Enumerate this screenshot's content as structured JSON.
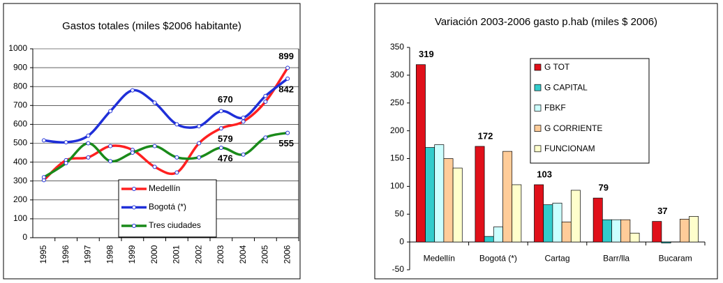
{
  "chart_data": [
    {
      "type": "line",
      "title": "Gastos totales (miles $2006 habitante)",
      "categories": [
        "1995",
        "1996",
        "1997",
        "1998",
        "1999",
        "2000",
        "2001",
        "2002",
        "2003",
        "2004",
        "2005",
        "2006"
      ],
      "ylim": [
        0,
        1000
      ],
      "yticks": [
        0,
        100,
        200,
        300,
        400,
        500,
        600,
        700,
        800,
        900,
        1000
      ],
      "grid": true,
      "series": [
        {
          "name": "Medellín",
          "color": "#ff2020",
          "values": [
            305,
            410,
            425,
            485,
            465,
            375,
            345,
            500,
            579,
            615,
            720,
            899
          ],
          "value_labels": [
            null,
            null,
            null,
            null,
            null,
            null,
            null,
            null,
            "579",
            null,
            null,
            "899"
          ]
        },
        {
          "name": "Bogotá (*)",
          "color": "#1f2fd8",
          "values": [
            515,
            505,
            540,
            670,
            780,
            715,
            600,
            590,
            670,
            635,
            750,
            842
          ],
          "value_labels": [
            null,
            null,
            null,
            null,
            null,
            null,
            null,
            null,
            "670",
            null,
            null,
            "842"
          ]
        },
        {
          "name": "Tres ciudades",
          "color": "#1a8a1a",
          "values": [
            320,
            395,
            500,
            405,
            450,
            485,
            425,
            425,
            476,
            440,
            530,
            555
          ],
          "value_labels": [
            null,
            null,
            null,
            null,
            null,
            null,
            null,
            null,
            "476",
            null,
            null,
            "555"
          ]
        }
      ]
    },
    {
      "type": "bar",
      "title": "Variación 2003-2006  gasto p.hab (miles $ 2006)",
      "categories": [
        "Medellín",
        "Bogotá (*)",
        "Cartag",
        "Barr/lla",
        "Bucaram"
      ],
      "ylim": [
        -50,
        350
      ],
      "yticks": [
        -50,
        0,
        50,
        100,
        150,
        200,
        250,
        300,
        350
      ],
      "grid": false,
      "series": [
        {
          "name": "G TOT",
          "color": "#e0101a",
          "values": [
            319,
            172,
            103,
            79,
            37
          ],
          "value_labels": [
            "319",
            "172",
            "103",
            "79",
            "37"
          ]
        },
        {
          "name": "G CAPITAL",
          "color": "#33cccc",
          "values": [
            170,
            10,
            67,
            40,
            -2
          ]
        },
        {
          "name": "FBKF",
          "color": "#ccffff",
          "values": [
            175,
            27,
            70,
            40,
            0
          ]
        },
        {
          "name": "G CORRIENTE",
          "color": "#ffcc99",
          "values": [
            150,
            163,
            36,
            40,
            41
          ]
        },
        {
          "name": "FUNCIONAM",
          "color": "#ffffcc",
          "values": [
            133,
            103,
            93,
            16,
            46
          ]
        }
      ]
    }
  ]
}
